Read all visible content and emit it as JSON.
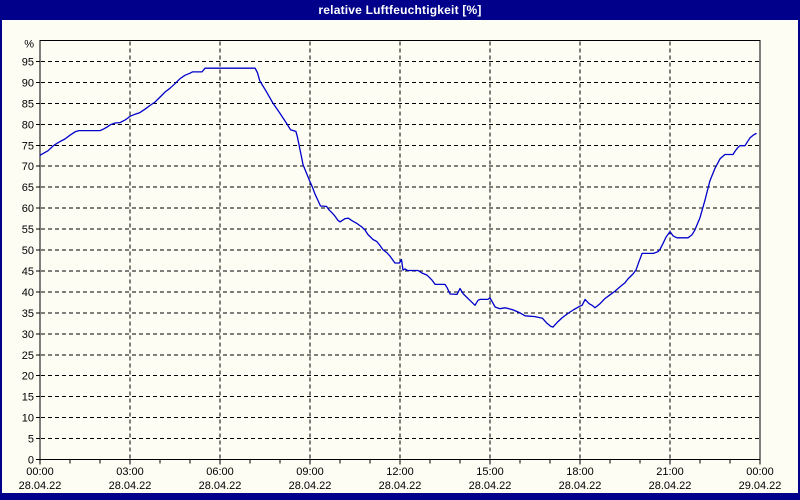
{
  "window": {
    "title": "relative Luftfeuchtigkeit [%]",
    "colors": {
      "frame": "#00008B",
      "background": "#FDFDF4",
      "line": "#0000CC",
      "grid": "#000000",
      "text": "#000000",
      "title_text": "#FFFFFF"
    }
  },
  "chart_data": {
    "type": "line",
    "title": "relative Luftfeuchtigkeit [%]",
    "ylabel": "%",
    "ylim": [
      0,
      100
    ],
    "ytick_step": 5,
    "ytick_labels": [
      "0",
      "5",
      "10",
      "15",
      "20",
      "25",
      "30",
      "35",
      "40",
      "45",
      "50",
      "55",
      "60",
      "65",
      "70",
      "75",
      "80",
      "85",
      "90",
      "95"
    ],
    "y_unit_label": "%",
    "grid": "dashed",
    "legend": "none",
    "x_range_hours": [
      0,
      24
    ],
    "minor_xtick_hours": 1,
    "xticks": [
      {
        "hour": 0,
        "time": "00:00",
        "date": "28.04.22"
      },
      {
        "hour": 3,
        "time": "03:00",
        "date": "28.04.22"
      },
      {
        "hour": 6,
        "time": "06:00",
        "date": "28.04.22"
      },
      {
        "hour": 9,
        "time": "09:00",
        "date": "28.04.22"
      },
      {
        "hour": 12,
        "time": "12:00",
        "date": "28.04.22"
      },
      {
        "hour": 15,
        "time": "15:00",
        "date": "28.04.22"
      },
      {
        "hour": 18,
        "time": "18:00",
        "date": "28.04.22"
      },
      {
        "hour": 21,
        "time": "21:00",
        "date": "28.04.22"
      },
      {
        "hour": 24,
        "time": "00:00",
        "date": "29.04.22"
      }
    ],
    "points_format": "[hour_of_day, relative_humidity_percent]",
    "points": [
      [
        0,
        72.6
      ],
      [
        0.1,
        73.0
      ],
      [
        0.27,
        73.7
      ],
      [
        0.43,
        74.8
      ],
      [
        0.6,
        75.6
      ],
      [
        0.83,
        76.5
      ],
      [
        1.0,
        77.4
      ],
      [
        1.17,
        78.2
      ],
      [
        1.3,
        78.5
      ],
      [
        2.0,
        78.5
      ],
      [
        2.1,
        78.8
      ],
      [
        2.23,
        79.3
      ],
      [
        2.35,
        79.9
      ],
      [
        2.5,
        80.3
      ],
      [
        2.67,
        80.4
      ],
      [
        2.83,
        81.0
      ],
      [
        2.93,
        81.5
      ],
      [
        3.0,
        81.9
      ],
      [
        3.17,
        82.4
      ],
      [
        3.33,
        82.8
      ],
      [
        3.5,
        83.6
      ],
      [
        3.67,
        84.5
      ],
      [
        3.83,
        85.3
      ],
      [
        4.0,
        86.5
      ],
      [
        4.17,
        87.7
      ],
      [
        4.33,
        88.6
      ],
      [
        4.5,
        89.7
      ],
      [
        4.67,
        90.9
      ],
      [
        4.83,
        91.7
      ],
      [
        5.0,
        92.2
      ],
      [
        5.08,
        92.5
      ],
      [
        5.4,
        92.5
      ],
      [
        5.5,
        93.4
      ],
      [
        7.17,
        93.4
      ],
      [
        7.25,
        92.3
      ],
      [
        7.32,
        90.5
      ],
      [
        7.4,
        89.5
      ],
      [
        7.53,
        88.0
      ],
      [
        7.77,
        85.0
      ],
      [
        8.0,
        82.6
      ],
      [
        8.23,
        80.1
      ],
      [
        8.35,
        78.7
      ],
      [
        8.53,
        78.3
      ],
      [
        8.58,
        77.0
      ],
      [
        8.77,
        70.3
      ],
      [
        9.0,
        66.3
      ],
      [
        9.08,
        65.0
      ],
      [
        9.17,
        63.3
      ],
      [
        9.28,
        61.6
      ],
      [
        9.35,
        60.5
      ],
      [
        9.55,
        60.4
      ],
      [
        9.62,
        59.7
      ],
      [
        9.73,
        58.9
      ],
      [
        9.83,
        58.1
      ],
      [
        9.93,
        57.1
      ],
      [
        10.0,
        56.7
      ],
      [
        10.17,
        57.5
      ],
      [
        10.28,
        57.6
      ],
      [
        10.4,
        57.0
      ],
      [
        10.57,
        56.3
      ],
      [
        10.73,
        55.5
      ],
      [
        10.83,
        54.8
      ],
      [
        10.93,
        53.7
      ],
      [
        11.1,
        52.5
      ],
      [
        11.23,
        52.0
      ],
      [
        11.33,
        51.1
      ],
      [
        11.43,
        50.1
      ],
      [
        11.57,
        49.3
      ],
      [
        11.67,
        48.5
      ],
      [
        11.83,
        46.9
      ],
      [
        11.98,
        46.9
      ],
      [
        12.05,
        47.7
      ],
      [
        12.1,
        45.2
      ],
      [
        12.17,
        45.5
      ],
      [
        12.25,
        45.1
      ],
      [
        12.6,
        45.1
      ],
      [
        12.73,
        44.5
      ],
      [
        12.9,
        44.0
      ],
      [
        13.07,
        42.8
      ],
      [
        13.17,
        41.8
      ],
      [
        13.5,
        41.8
      ],
      [
        13.57,
        41.0
      ],
      [
        13.67,
        39.5
      ],
      [
        13.9,
        39.4
      ],
      [
        14.0,
        40.8
      ],
      [
        14.1,
        39.6
      ],
      [
        14.33,
        38.0
      ],
      [
        14.5,
        36.8
      ],
      [
        14.6,
        38.0
      ],
      [
        14.67,
        38.2
      ],
      [
        14.93,
        38.2
      ],
      [
        15.0,
        38.6
      ],
      [
        15.17,
        36.4
      ],
      [
        15.33,
        36.0
      ],
      [
        15.5,
        36.2
      ],
      [
        15.63,
        36.0
      ],
      [
        15.77,
        35.7
      ],
      [
        16.0,
        35.0
      ],
      [
        16.17,
        34.3
      ],
      [
        16.5,
        34.1
      ],
      [
        16.75,
        33.7
      ],
      [
        16.9,
        32.5
      ],
      [
        17.02,
        31.8
      ],
      [
        17.1,
        31.6
      ],
      [
        17.25,
        32.8
      ],
      [
        17.4,
        33.8
      ],
      [
        17.55,
        34.6
      ],
      [
        17.67,
        35.2
      ],
      [
        17.8,
        35.8
      ],
      [
        17.9,
        36.2
      ],
      [
        18.0,
        36.6
      ],
      [
        18.07,
        36.8
      ],
      [
        18.17,
        38.2
      ],
      [
        18.3,
        37.2
      ],
      [
        18.4,
        36.8
      ],
      [
        18.5,
        36.2
      ],
      [
        18.67,
        37.2
      ],
      [
        18.83,
        38.4
      ],
      [
        19.0,
        39.3
      ],
      [
        19.17,
        40.2
      ],
      [
        19.33,
        41.2
      ],
      [
        19.5,
        42.2
      ],
      [
        19.6,
        43.1
      ],
      [
        19.77,
        44.3
      ],
      [
        19.87,
        45.3
      ],
      [
        19.97,
        47.3
      ],
      [
        20.07,
        49.2
      ],
      [
        20.45,
        49.2
      ],
      [
        20.6,
        49.6
      ],
      [
        20.67,
        50.2
      ],
      [
        20.77,
        51.6
      ],
      [
        20.87,
        53.1
      ],
      [
        21.0,
        54.4
      ],
      [
        21.1,
        53.4
      ],
      [
        21.23,
        52.9
      ],
      [
        21.6,
        52.9
      ],
      [
        21.73,
        53.6
      ],
      [
        21.83,
        54.8
      ],
      [
        21.9,
        56.0
      ],
      [
        22.0,
        57.7
      ],
      [
        22.17,
        62.0
      ],
      [
        22.33,
        66.5
      ],
      [
        22.5,
        69.5
      ],
      [
        22.67,
        71.8
      ],
      [
        22.83,
        72.8
      ],
      [
        23.1,
        72.8
      ],
      [
        23.17,
        73.6
      ],
      [
        23.27,
        74.5
      ],
      [
        23.33,
        74.9
      ],
      [
        23.5,
        74.9
      ],
      [
        23.57,
        75.7
      ],
      [
        23.67,
        76.8
      ],
      [
        23.77,
        77.4
      ],
      [
        23.87,
        77.8
      ]
    ]
  }
}
